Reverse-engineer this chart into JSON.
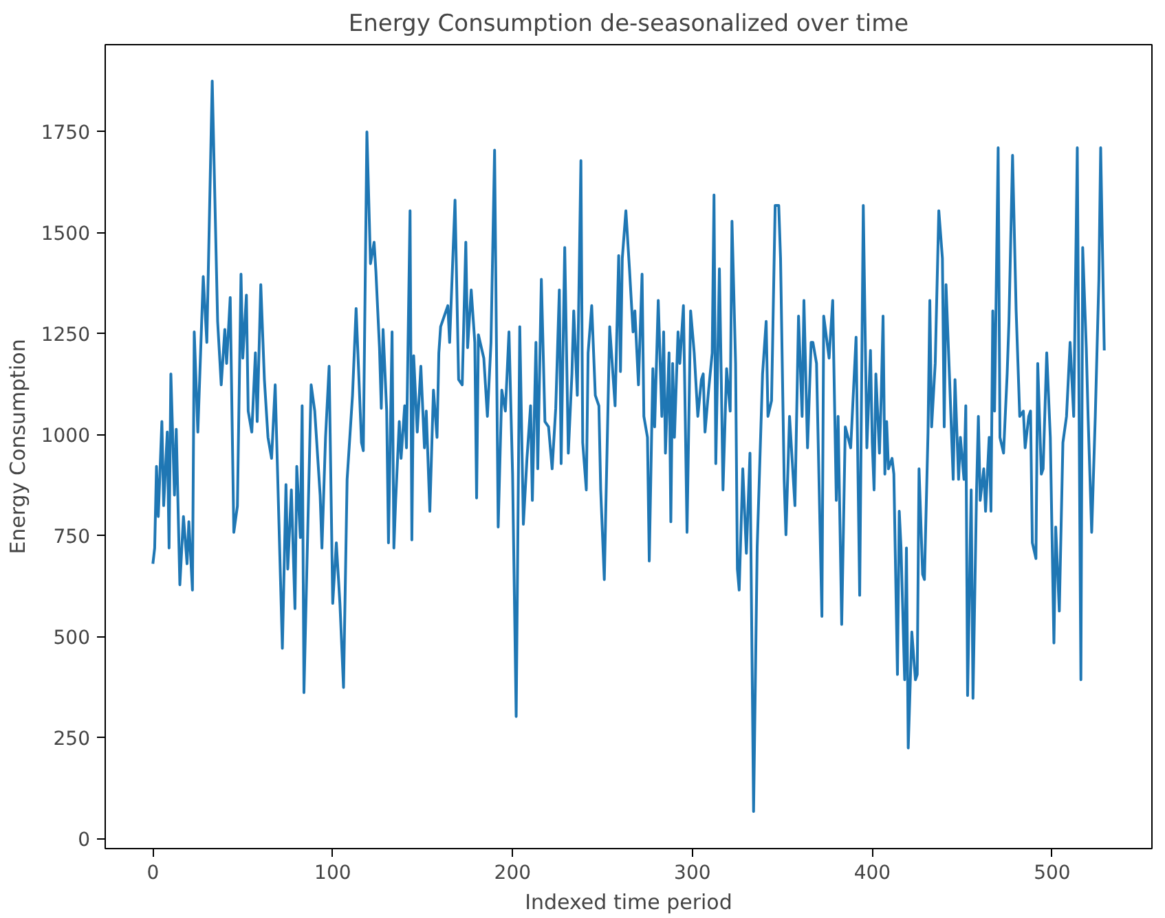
{
  "chart_data": {
    "type": "line",
    "title": "Energy Consumption de-seasonalized over time",
    "xlabel": "Indexed time period",
    "ylabel": "Energy Consumption",
    "x": [
      0,
      1,
      2,
      3,
      5,
      6,
      8,
      9,
      10,
      12,
      13,
      15,
      17,
      19,
      20,
      22,
      23,
      25,
      28,
      30,
      33,
      36,
      38,
      40,
      41,
      43,
      45,
      47,
      49,
      50,
      52,
      53,
      55,
      57,
      58,
      60,
      62,
      64,
      66,
      68,
      72,
      74,
      75,
      77,
      79,
      80,
      82,
      83,
      84,
      88,
      90,
      93,
      94,
      96,
      98,
      100,
      102,
      104,
      106,
      108,
      111,
      113,
      116,
      117,
      119,
      121,
      123,
      124,
      126,
      127,
      128,
      130,
      131,
      133,
      134,
      135,
      137,
      138,
      140,
      141,
      143,
      144,
      145,
      147,
      149,
      151,
      152,
      154,
      156,
      158,
      159,
      160,
      164,
      165,
      168,
      170,
      172,
      174,
      175,
      177,
      179,
      180,
      181,
      184,
      186,
      188,
      190,
      192,
      194,
      196,
      198,
      200,
      202,
      204,
      206,
      208,
      210,
      211,
      213,
      214,
      216,
      218,
      220,
      222,
      224,
      226,
      227,
      229,
      231,
      233,
      234,
      236,
      238,
      239,
      241,
      242,
      244,
      246,
      248,
      249,
      251,
      254,
      257,
      259,
      260,
      261,
      263,
      265,
      267,
      268,
      270,
      272,
      273,
      275,
      276,
      278,
      279,
      281,
      283,
      284,
      285,
      287,
      288,
      289,
      290,
      292,
      293,
      295,
      296,
      297,
      299,
      301,
      303,
      305,
      306,
      307,
      309,
      311,
      312,
      313,
      315,
      316,
      317,
      319,
      321,
      322,
      324,
      325,
      326,
      328,
      330,
      332,
      334,
      336,
      339,
      341,
      342,
      344,
      346,
      348,
      349,
      351,
      352,
      354,
      357,
      359,
      361,
      362,
      364,
      366,
      367,
      369,
      372,
      373,
      376,
      378,
      380,
      381,
      383,
      385,
      388,
      391,
      393,
      395,
      397,
      399,
      400,
      401,
      402,
      404,
      405,
      406,
      407,
      408,
      409,
      411,
      412,
      414,
      415,
      416,
      418,
      419,
      420,
      422,
      424,
      425,
      426,
      428,
      429,
      431,
      432,
      433,
      435,
      437,
      439,
      440,
      441,
      443,
      445,
      446,
      448,
      449,
      451,
      452,
      453,
      455,
      456,
      458,
      459,
      460,
      462,
      463,
      465,
      466,
      467,
      468,
      470,
      471,
      473,
      475,
      476,
      478,
      480,
      482,
      484,
      485,
      487,
      488,
      489,
      491,
      492,
      494,
      495,
      497,
      499,
      501,
      502,
      504,
      505,
      506,
      508,
      510,
      512,
      514,
      515,
      516,
      517,
      519,
      520,
      522,
      524,
      526,
      527,
      529
    ],
    "series": [
      {
        "color": "#1f77b4",
        "values": [
          680,
          719,
          921,
          797,
          1032,
          824,
          1006,
          719,
          1150,
          850,
          1013,
          628,
          797,
          680,
          784,
          615,
          1254,
          1006,
          1391,
          1228,
          1875,
          1280,
          1123,
          1260,
          1176,
          1339,
          758,
          823,
          1397,
          1189,
          1345,
          1058,
          1006,
          1202,
          1032,
          1371,
          1136,
          993,
          941,
          1123,
          471,
          876,
          667,
          863,
          569,
          921,
          745,
          1071,
          361,
          1123,
          1058,
          850,
          719,
          993,
          1169,
          582,
          732,
          582,
          374,
          889,
          1097,
          1312,
          980,
          960,
          1749,
          1423,
          1476,
          1404,
          1215,
          1065,
          1260,
          1058,
          732,
          1254,
          719,
          837,
          1032,
          941,
          1071,
          967,
          1554,
          739,
          1195,
          1006,
          1169,
          967,
          1058,
          810,
          1110,
          993,
          1202,
          1267,
          1319,
          1228,
          1580,
          1136,
          1123,
          1476,
          1215,
          1358,
          1228,
          843,
          1247,
          1189,
          1045,
          1228,
          1704,
          771,
          1110,
          1058,
          1254,
          902,
          302,
          1267,
          778,
          941,
          1071,
          837,
          1228,
          915,
          1384,
          1032,
          1019,
          915,
          1065,
          1358,
          928,
          1463,
          954,
          1150,
          1306,
          1097,
          1678,
          980,
          863,
          1202,
          1319,
          1097,
          1071,
          863,
          641,
          1267,
          1071,
          1443,
          1156,
          1436,
          1554,
          1410,
          1254,
          1306,
          1123,
          1397,
          1045,
          993,
          687,
          1163,
          1019,
          1332,
          1045,
          1254,
          954,
          1202,
          784,
          1176,
          993,
          1254,
          1176,
          1319,
          1045,
          758,
          1306,
          1202,
          1045,
          1136,
          1150,
          1006,
          1110,
          1202,
          1593,
          928,
          1410,
          1150,
          863,
          1163,
          1058,
          1528,
          1176,
          667,
          615,
          915,
          706,
          954,
          67,
          719,
          1150,
          1280,
          1045,
          1084,
          1567,
          1567,
          1436,
          889,
          752,
          1045,
          824,
          1293,
          1045,
          1332,
          967,
          1228,
          1228,
          1176,
          550,
          1293,
          1189,
          1332,
          837,
          1045,
          530,
          1019,
          967,
          1241,
          602,
          1567,
          967,
          1208,
          980,
          863,
          1150,
          954,
          1097,
          1293,
          902,
          1032,
          915,
          941,
          902,
          406,
          810,
          719,
          393,
          719,
          224,
          511,
          393,
          406,
          915,
          654,
          641,
          1006,
          1332,
          1019,
          1176,
          1554,
          1436,
          1019,
          1371,
          1136,
          889,
          1136,
          889,
          993,
          889,
          1071,
          354,
          863,
          347,
          863,
          1045,
          837,
          915,
          810,
          993,
          810,
          1306,
          1058,
          1710,
          993,
          954,
          1150,
          1280,
          1691,
          1306,
          1045,
          1058,
          967,
          1045,
          1058,
          732,
          693,
          1176,
          902,
          915,
          1202,
          993,
          484,
          771,
          563,
          771,
          980,
          1045,
          1228,
          1045,
          1710,
          1045,
          393,
          1463,
          1215,
          1045,
          758,
          1045,
          1384,
          1710,
          1208
        ]
      }
    ],
    "xlim": [
      -26.5,
      555.5
    ],
    "ylim": [
      -25,
      1965
    ],
    "xticks": [
      0,
      100,
      200,
      300,
      400,
      500
    ],
    "yticks": [
      0,
      250,
      500,
      750,
      1000,
      1250,
      1500,
      1750
    ],
    "grid": false
  }
}
